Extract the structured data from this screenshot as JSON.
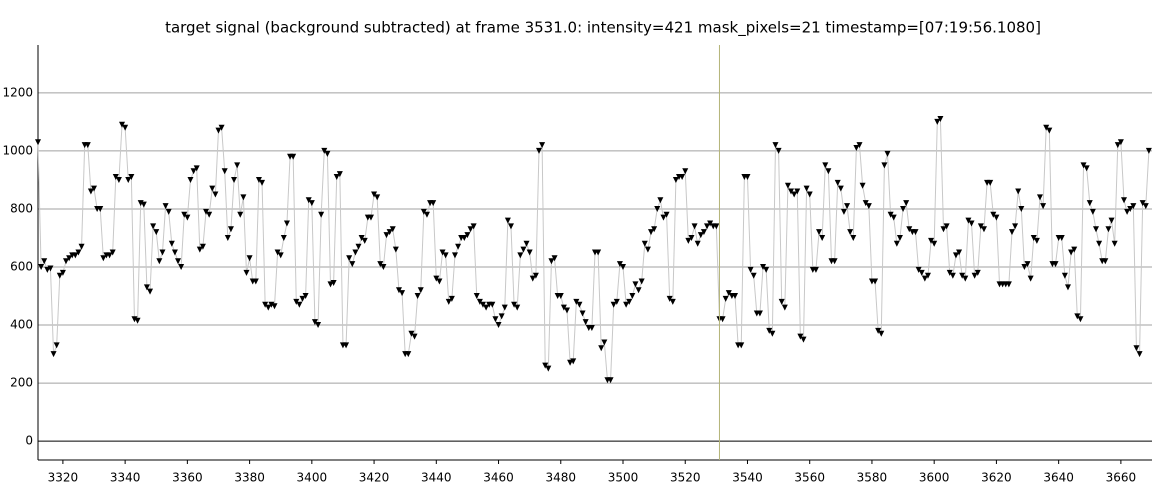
{
  "chart_data": {
    "type": "line",
    "title": "target signal (background subtracted) at frame 3531.0: intensity=421 mask_pixels=21 timestamp=[07:19:56.1080]",
    "x": [
      3312,
      3313,
      3314,
      3315,
      3316,
      3317,
      3318,
      3319,
      3320,
      3321,
      3322,
      3323,
      3324,
      3325,
      3326,
      3327,
      3328,
      3329,
      3330,
      3331,
      3332,
      3333,
      3334,
      3335,
      3336,
      3337,
      3338,
      3339,
      3340,
      3341,
      3342,
      3343,
      3344,
      3345,
      3346,
      3347,
      3348,
      3349,
      3350,
      3351,
      3352,
      3353,
      3354,
      3355,
      3356,
      3357,
      3358,
      3359,
      3360,
      3361,
      3362,
      3363,
      3364,
      3365,
      3366,
      3367,
      3368,
      3369,
      3370,
      3371,
      3372,
      3373,
      3374,
      3375,
      3376,
      3377,
      3378,
      3379,
      3380,
      3381,
      3382,
      3383,
      3384,
      3385,
      3386,
      3387,
      3388,
      3389,
      3390,
      3391,
      3392,
      3393,
      3394,
      3395,
      3396,
      3397,
      3398,
      3399,
      3400,
      3401,
      3402,
      3403,
      3404,
      3405,
      3406,
      3407,
      3408,
      3409,
      3410,
      3411,
      3412,
      3413,
      3414,
      3415,
      3416,
      3417,
      3418,
      3419,
      3420,
      3421,
      3422,
      3423,
      3424,
      3425,
      3426,
      3427,
      3428,
      3429,
      3430,
      3431,
      3432,
      3433,
      3434,
      3435,
      3436,
      3437,
      3438,
      3439,
      3440,
      3441,
      3442,
      3443,
      3444,
      3445,
      3446,
      3447,
      3448,
      3449,
      3450,
      3451,
      3452,
      3453,
      3454,
      3455,
      3456,
      3457,
      3458,
      3459,
      3460,
      3461,
      3462,
      3463,
      3464,
      3465,
      3466,
      3467,
      3468,
      3469,
      3470,
      3471,
      3472,
      3473,
      3474,
      3475,
      3476,
      3477,
      3478,
      3479,
      3480,
      3481,
      3482,
      3483,
      3484,
      3485,
      3486,
      3487,
      3488,
      3489,
      3490,
      3491,
      3492,
      3493,
      3494,
      3495,
      3496,
      3497,
      3498,
      3499,
      3500,
      3501,
      3502,
      3503,
      3504,
      3505,
      3506,
      3507,
      3508,
      3509,
      3510,
      3511,
      3512,
      3513,
      3514,
      3515,
      3516,
      3517,
      3518,
      3519,
      3520,
      3521,
      3522,
      3523,
      3524,
      3525,
      3526,
      3527,
      3528,
      3529,
      3530,
      3531,
      3532,
      3533,
      3534,
      3535,
      3536,
      3537,
      3538,
      3539,
      3540,
      3541,
      3542,
      3543,
      3544,
      3545,
      3546,
      3547,
      3548,
      3549,
      3550,
      3551,
      3552,
      3553,
      3554,
      3555,
      3556,
      3557,
      3558,
      3559,
      3560,
      3561,
      3562,
      3563,
      3564,
      3565,
      3566,
      3567,
      3568,
      3569,
      3570,
      3571,
      3572,
      3573,
      3574,
      3575,
      3576,
      3577,
      3578,
      3579,
      3580,
      3581,
      3582,
      3583,
      3584,
      3585,
      3586,
      3587,
      3588,
      3589,
      3590,
      3591,
      3592,
      3593,
      3594,
      3595,
      3596,
      3597,
      3598,
      3599,
      3600,
      3601,
      3602,
      3603,
      3604,
      3605,
      3606,
      3607,
      3608,
      3609,
      3610,
      3611,
      3612,
      3613,
      3614,
      3615,
      3616,
      3617,
      3618,
      3619,
      3620,
      3621,
      3622,
      3623,
      3624,
      3625,
      3626,
      3627,
      3628,
      3629,
      3630,
      3631,
      3632,
      3633,
      3634,
      3635,
      3636,
      3637,
      3638,
      3639,
      3640,
      3641,
      3642,
      3643,
      3644,
      3645,
      3646,
      3647,
      3648,
      3649,
      3650,
      3651,
      3652,
      3653,
      3654,
      3655,
      3656,
      3657,
      3658,
      3659,
      3660,
      3661,
      3662,
      3663,
      3664,
      3665,
      3666,
      3667,
      3668,
      3669
    ],
    "series": [
      {
        "color": "#000000",
        "line_color": "#c8c8c8",
        "values": [
          1030,
          600,
          620,
          590,
          595,
          300,
          330,
          570,
          580,
          620,
          630,
          640,
          640,
          650,
          670,
          1020,
          1020,
          860,
          870,
          800,
          800,
          630,
          640,
          640,
          650,
          910,
          900,
          1090,
          1080,
          900,
          910,
          420,
          415,
          820,
          815,
          530,
          515,
          740,
          720,
          620,
          650,
          810,
          790,
          680,
          650,
          620,
          600,
          780,
          770,
          900,
          930,
          940,
          660,
          670,
          790,
          780,
          870,
          850,
          1070,
          1080,
          930,
          700,
          730,
          900,
          950,
          780,
          840,
          580,
          630,
          550,
          550,
          900,
          890,
          470,
          460,
          470,
          465,
          650,
          640,
          700,
          750,
          980,
          980,
          480,
          470,
          490,
          500,
          830,
          820,
          410,
          400,
          780,
          1000,
          990,
          540,
          545,
          910,
          920,
          330,
          330,
          630,
          610,
          650,
          670,
          700,
          690,
          770,
          770,
          850,
          840,
          610,
          600,
          710,
          720,
          730,
          660,
          520,
          510,
          300,
          300,
          370,
          360,
          500,
          520,
          790,
          780,
          820,
          820,
          560,
          550,
          650,
          640,
          480,
          490,
          640,
          670,
          700,
          700,
          710,
          730,
          740,
          500,
          480,
          470,
          460,
          470,
          470,
          420,
          400,
          430,
          460,
          760,
          740,
          470,
          460,
          640,
          660,
          680,
          650,
          560,
          570,
          1000,
          1020,
          260,
          250,
          620,
          630,
          500,
          500,
          460,
          450,
          270,
          275,
          480,
          470,
          440,
          410,
          390,
          390,
          650,
          650,
          320,
          340,
          210,
          210,
          470,
          480,
          610,
          600,
          470,
          480,
          500,
          540,
          520,
          550,
          680,
          660,
          720,
          730,
          800,
          830,
          770,
          780,
          490,
          480,
          900,
          910,
          910,
          930,
          690,
          700,
          740,
          680,
          710,
          720,
          740,
          750,
          740,
          740,
          420,
          420,
          490,
          510,
          500,
          500,
          330,
          330,
          910,
          910,
          590,
          570,
          440,
          440,
          600,
          590,
          380,
          370,
          1020,
          1000,
          480,
          460,
          880,
          860,
          850,
          860,
          360,
          350,
          870,
          850,
          590,
          590,
          720,
          700,
          950,
          930,
          620,
          620,
          890,
          870,
          790,
          810,
          720,
          700,
          1010,
          1020,
          880,
          820,
          810,
          550,
          550,
          380,
          370,
          950,
          990,
          780,
          770,
          680,
          700,
          800,
          820,
          730,
          720,
          720,
          590,
          580,
          560,
          570,
          690,
          680,
          1100,
          1110,
          730,
          740,
          580,
          570,
          640,
          650,
          570,
          560,
          760,
          750,
          570,
          580,
          740,
          730,
          890,
          890,
          780,
          770,
          540,
          540,
          540,
          540,
          720,
          740,
          860,
          800,
          600,
          610,
          560,
          700,
          690,
          840,
          810,
          1080,
          1070,
          610,
          610,
          700,
          700,
          570,
          530,
          650,
          660,
          430,
          420,
          950,
          940,
          820,
          790,
          730,
          680,
          620,
          620,
          730,
          760,
          680,
          1020,
          1030,
          830,
          790,
          800,
          810,
          320,
          300,
          820,
          810,
          1000
        ]
      }
    ],
    "xlim": [
      3312,
      3670
    ],
    "ylim": [
      -65,
      1365
    ],
    "xticks": [
      3320,
      3340,
      3360,
      3380,
      3400,
      3420,
      3440,
      3460,
      3480,
      3500,
      3520,
      3540,
      3560,
      3580,
      3600,
      3620,
      3640,
      3660
    ],
    "yticks": [
      0,
      200,
      400,
      600,
      800,
      1000,
      1200
    ],
    "cursor_x": 3531,
    "cursor_color": "#b4b478",
    "grid": true
  }
}
